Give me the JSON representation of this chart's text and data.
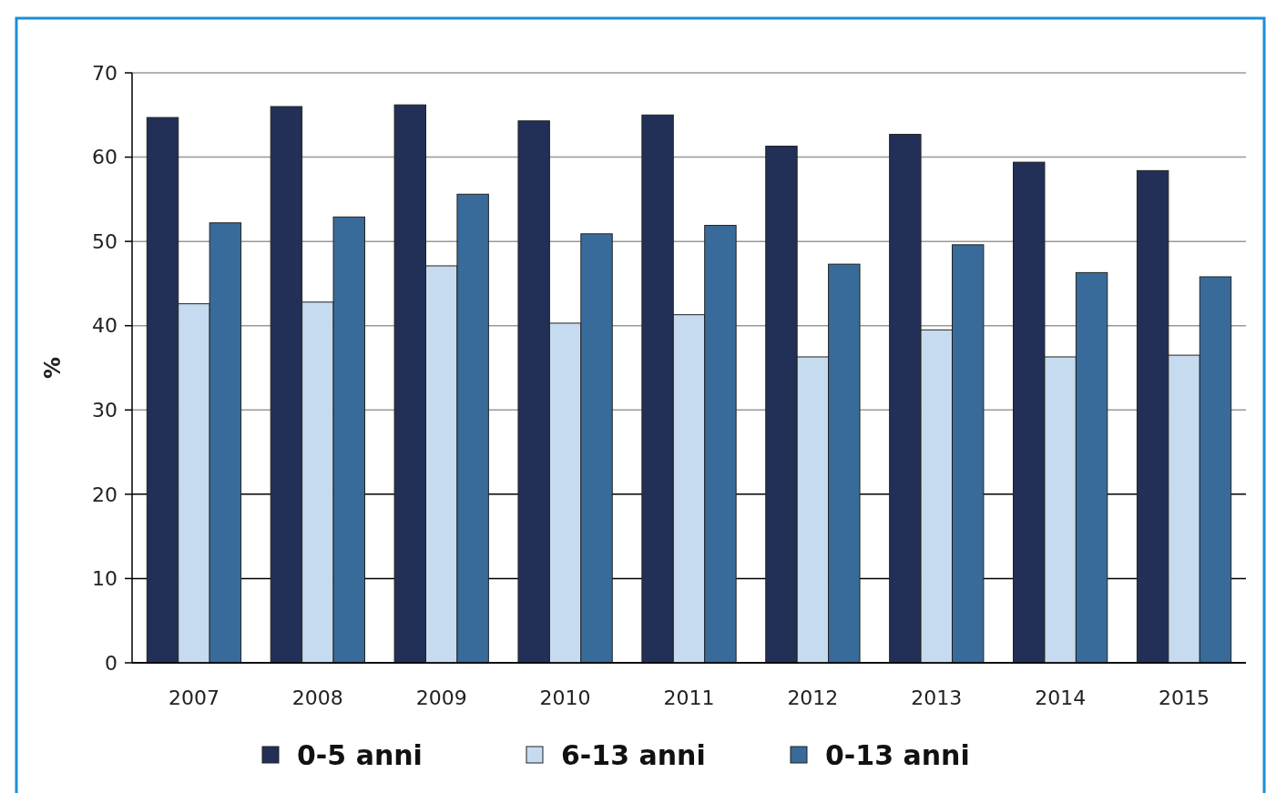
{
  "chart_data": {
    "type": "bar",
    "ylabel": "%",
    "categories": [
      "2007",
      "2008",
      "2009",
      "2010",
      "2011",
      "2012",
      "2013",
      "2014",
      "2015"
    ],
    "series": [
      {
        "name": "0-5 anni",
        "color": "#223057",
        "values": [
          64.7,
          66.0,
          66.2,
          64.3,
          65.0,
          61.3,
          62.7,
          59.4,
          58.4
        ]
      },
      {
        "name": "6-13 anni",
        "color": "#c6dbef",
        "values": [
          42.6,
          42.8,
          47.1,
          40.3,
          41.3,
          36.3,
          39.5,
          36.3,
          36.5
        ]
      },
      {
        "name": "0-13 anni",
        "color": "#386b9a",
        "values": [
          52.2,
          52.9,
          55.6,
          50.9,
          51.9,
          47.3,
          49.6,
          46.3,
          45.8
        ]
      }
    ],
    "ylim": [
      0,
      70
    ],
    "yticks": [
      0,
      10,
      20,
      30,
      40,
      50,
      60,
      70
    ],
    "grid": "y",
    "legend": "bottom"
  }
}
